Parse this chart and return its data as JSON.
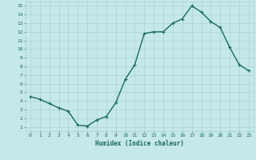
{
  "x": [
    0,
    1,
    2,
    3,
    4,
    5,
    6,
    7,
    8,
    9,
    10,
    11,
    12,
    13,
    14,
    15,
    16,
    17,
    18,
    19,
    20,
    21,
    22,
    23
  ],
  "y": [
    4.5,
    4.2,
    3.7,
    3.2,
    2.8,
    1.2,
    1.1,
    1.8,
    2.2,
    3.8,
    6.5,
    8.2,
    11.8,
    12.0,
    12.0,
    13.0,
    13.5,
    15.0,
    14.3,
    13.2,
    12.5,
    10.2,
    8.2,
    7.5
  ],
  "line_color": "#1a6b5a",
  "marker": "+",
  "marker_size": 3,
  "marker_linewidth": 0.8,
  "bg_color": "#c5e8e8",
  "grid_color": "#aacece",
  "tick_label_color": "#1a6b5a",
  "xlabel": "Humidex (Indice chaleur)",
  "xlabel_color": "#1a6b5a",
  "xlim": [
    -0.5,
    23.5
  ],
  "ylim": [
    0.5,
    15.5
  ],
  "yticks": [
    1,
    2,
    3,
    4,
    5,
    6,
    7,
    8,
    9,
    10,
    11,
    12,
    13,
    14,
    15
  ],
  "xticks": [
    0,
    1,
    2,
    3,
    4,
    5,
    6,
    7,
    8,
    9,
    10,
    11,
    12,
    13,
    14,
    15,
    16,
    17,
    18,
    19,
    20,
    21,
    22,
    23
  ],
  "xtick_labels": [
    "0",
    "1",
    "2",
    "3",
    "4",
    "5",
    "6",
    "7",
    "8",
    "9",
    "10",
    "11",
    "12",
    "13",
    "14",
    "15",
    "16",
    "17",
    "18",
    "19",
    "20",
    "21",
    "22",
    "23"
  ],
  "line_width": 1.0,
  "tick_fontsize": 4.5,
  "xlabel_fontsize": 5.5,
  "xlabel_fontweight": "bold"
}
